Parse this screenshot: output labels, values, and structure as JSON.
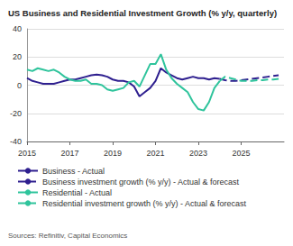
{
  "chart_data": {
    "type": "line",
    "title": "US Business and Residential Investment Growth (% y/y, quarterly)",
    "source": "Sources: Refinitiv, Capital Economics",
    "x": [
      2015,
      2015.25,
      2015.5,
      2015.75,
      2016,
      2016.25,
      2016.5,
      2016.75,
      2017,
      2017.25,
      2017.5,
      2017.75,
      2018,
      2018.25,
      2018.5,
      2018.75,
      2019,
      2019.25,
      2019.5,
      2019.75,
      2020,
      2020.25,
      2020.5,
      2020.75,
      2021,
      2021.25,
      2021.5,
      2021.75,
      2022,
      2022.25,
      2022.5,
      2022.75,
      2023,
      2023.25,
      2023.5,
      2023.75,
      2024,
      2024.25,
      2024.5,
      2024.75,
      2025,
      2025.25,
      2025.5,
      2025.75,
      2026,
      2026.25,
      2026.5,
      2026.75
    ],
    "series": [
      {
        "name": "Business - Actual",
        "color": "#2e1f8f",
        "line_style": "solid",
        "values": [
          5,
          3,
          2,
          1,
          1,
          1,
          2,
          3,
          4,
          4,
          5,
          6,
          7,
          7.5,
          7,
          6,
          4,
          3,
          3,
          2,
          -1,
          -8,
          -5,
          -2,
          3,
          12,
          9,
          7,
          5,
          4,
          5,
          6,
          5,
          5,
          4,
          5,
          4.5,
          null,
          null,
          null,
          null,
          null,
          null,
          null,
          null,
          null,
          null,
          null
        ]
      },
      {
        "name": "Business investment growth (% y/y) - Actual & forecast",
        "color": "#2e1f8f",
        "line_style": "dashed",
        "values": [
          null,
          null,
          null,
          null,
          null,
          null,
          null,
          null,
          null,
          null,
          null,
          null,
          null,
          null,
          null,
          null,
          null,
          null,
          null,
          null,
          null,
          null,
          null,
          null,
          null,
          null,
          null,
          null,
          null,
          null,
          null,
          null,
          null,
          null,
          null,
          null,
          4.5,
          3.5,
          3,
          3,
          3.5,
          4,
          4.5,
          5,
          5.5,
          6,
          6.5,
          7
        ]
      },
      {
        "name": "Residential - Actual",
        "color": "#2fc49c",
        "line_style": "solid",
        "values": [
          11,
          10,
          12,
          11,
          10,
          11,
          9,
          6,
          4,
          3,
          3,
          4,
          1,
          1,
          0,
          -3,
          -4,
          -3,
          -2,
          2,
          3,
          -1,
          7,
          15,
          15,
          22,
          11,
          5,
          1,
          -2,
          -5,
          -12,
          -17,
          -18,
          -12,
          -2,
          3,
          null,
          null,
          null,
          null,
          null,
          null,
          null,
          null,
          null,
          null,
          null
        ]
      },
      {
        "name": "Residential investment growth (% y/y) - Actual & forecast",
        "color": "#2fc49c",
        "line_style": "dashed",
        "values": [
          null,
          null,
          null,
          null,
          null,
          null,
          null,
          null,
          null,
          null,
          null,
          null,
          null,
          null,
          null,
          null,
          null,
          null,
          null,
          null,
          null,
          null,
          null,
          null,
          null,
          null,
          null,
          null,
          null,
          null,
          null,
          null,
          null,
          null,
          null,
          null,
          3,
          6,
          5,
          4,
          3,
          3,
          3,
          3.5,
          3.5,
          4,
          4,
          4.5
        ]
      }
    ],
    "xlim": [
      2015,
      2027
    ],
    "xticks": [
      2015,
      2017,
      2019,
      2021,
      2023,
      2025
    ],
    "ylim": [
      -40,
      40
    ],
    "yticks": [
      -40,
      -20,
      0,
      20,
      40
    ],
    "grid": true
  }
}
